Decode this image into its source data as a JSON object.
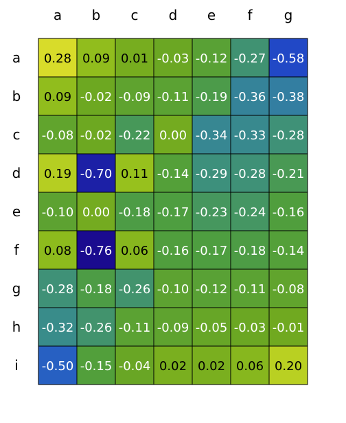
{
  "chart_data": {
    "type": "heatmap",
    "title": "",
    "xlabel": "",
    "ylabel": "",
    "x_labels": [
      "a",
      "b",
      "c",
      "d",
      "e",
      "f",
      "g"
    ],
    "y_labels": [
      "a",
      "b",
      "c",
      "d",
      "e",
      "f",
      "g",
      "h",
      "i"
    ],
    "x_axis_position": "top",
    "grid": false,
    "colorbar": false,
    "value_range": [
      -0.76,
      0.28
    ],
    "colormap": [
      "#1a0b8f",
      "#1f3fc8",
      "#2a6bc0",
      "#3a8d88",
      "#4f9e3e",
      "#6ea820",
      "#9ec51c",
      "#d8dc2a"
    ],
    "values": [
      [
        0.28,
        0.09,
        0.01,
        -0.03,
        -0.12,
        -0.27,
        -0.58
      ],
      [
        0.09,
        -0.02,
        -0.09,
        -0.11,
        -0.19,
        -0.36,
        -0.38
      ],
      [
        -0.08,
        -0.02,
        -0.22,
        0.0,
        -0.34,
        -0.33,
        -0.28
      ],
      [
        0.19,
        -0.7,
        0.11,
        -0.14,
        -0.29,
        -0.28,
        -0.21
      ],
      [
        -0.1,
        0.0,
        -0.18,
        -0.17,
        -0.23,
        -0.24,
        -0.16
      ],
      [
        0.08,
        -0.76,
        0.06,
        -0.16,
        -0.17,
        -0.18,
        -0.14
      ],
      [
        -0.28,
        -0.18,
        -0.26,
        -0.1,
        -0.12,
        -0.11,
        -0.08
      ],
      [
        -0.32,
        -0.26,
        -0.11,
        -0.09,
        -0.05,
        -0.03,
        -0.01
      ],
      [
        -0.5,
        -0.15,
        -0.04,
        0.02,
        0.02,
        0.06,
        0.2
      ]
    ],
    "label_color_dark": "#000000",
    "label_color_light": "#ffffff"
  }
}
